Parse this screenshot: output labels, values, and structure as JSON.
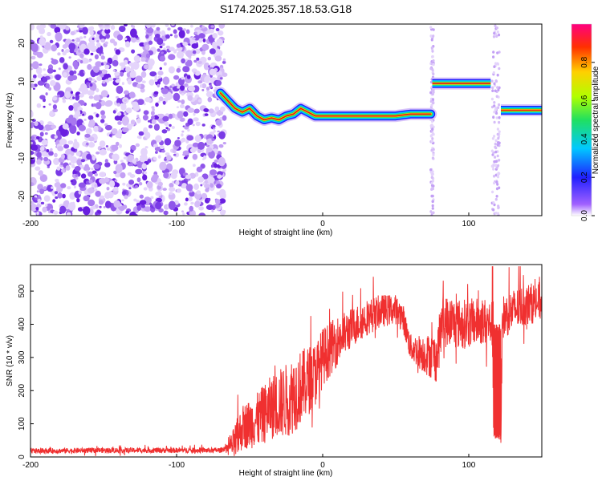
{
  "figure": {
    "title": "S174.2025.357.18.53.G18"
  },
  "chart_data": [
    {
      "type": "heatmap",
      "xlabel": "Height of straight line (km)",
      "ylabel": "Frequency (Hz)",
      "xlim": [
        -200,
        150
      ],
      "ylim": [
        -25,
        25
      ],
      "xticks": [
        "-200",
        "-100",
        "0",
        "100"
      ],
      "yticks": [
        "-20",
        "-10",
        "0",
        "10",
        "20"
      ],
      "xtick_values": [
        -200,
        -100,
        0,
        100
      ],
      "ytick_values": [
        -20,
        -10,
        0,
        10,
        20
      ],
      "noise_region_x": [
        -200,
        -67
      ],
      "signal_track": [
        {
          "x": -70,
          "f": 7
        },
        {
          "x": -65,
          "f": 5
        },
        {
          "x": -60,
          "f": 3
        },
        {
          "x": -55,
          "f": 2
        },
        {
          "x": -50,
          "f": 3
        },
        {
          "x": -45,
          "f": 1
        },
        {
          "x": -40,
          "f": 0
        },
        {
          "x": -35,
          "f": 0.5
        },
        {
          "x": -30,
          "f": 0
        },
        {
          "x": -25,
          "f": 1
        },
        {
          "x": -20,
          "f": 1.5
        },
        {
          "x": -15,
          "f": 3
        },
        {
          "x": -10,
          "f": 2
        },
        {
          "x": -5,
          "f": 1
        },
        {
          "x": 0,
          "f": 1
        },
        {
          "x": 10,
          "f": 1
        },
        {
          "x": 20,
          "f": 1
        },
        {
          "x": 30,
          "f": 1
        },
        {
          "x": 40,
          "f": 1
        },
        {
          "x": 50,
          "f": 1
        },
        {
          "x": 60,
          "f": 1.5
        },
        {
          "x": 70,
          "f": 1.5
        },
        {
          "x": 74,
          "f": 1.5
        }
      ],
      "signal_segments": [
        {
          "x0": 75,
          "x1": 115,
          "f": 9.5
        },
        {
          "x0": 122,
          "x1": 150,
          "f": 2.5
        }
      ],
      "gaps": [
        {
          "x0": 74,
          "x1": 76
        },
        {
          "x0": 116,
          "x1": 121
        }
      ],
      "colorbar": {
        "label": "Normalized spectral amplitude",
        "range": [
          0,
          1
        ],
        "ticks": [
          "0.0",
          "0.2",
          "0.4",
          "0.6",
          "0.8"
        ],
        "tick_values": [
          0,
          0.2,
          0.4,
          0.6,
          0.8
        ]
      }
    },
    {
      "type": "line",
      "xlabel": "Height of straight line (km)",
      "ylabel": "SNR (10 * v/v)",
      "xlim": [
        -200,
        150
      ],
      "ylim": [
        0,
        580
      ],
      "xticks": [
        "-200",
        "-100",
        "0",
        "100"
      ],
      "yticks": [
        "0",
        "100",
        "200",
        "300",
        "400",
        "500"
      ],
      "xtick_values": [
        -200,
        -100,
        0,
        100
      ],
      "ytick_values": [
        0,
        100,
        200,
        300,
        400,
        500
      ],
      "color": "#f03030",
      "trend": [
        {
          "x": -200,
          "y": 18
        },
        {
          "x": -150,
          "y": 20
        },
        {
          "x": -100,
          "y": 20
        },
        {
          "x": -70,
          "y": 20
        },
        {
          "x": -60,
          "y": 40
        },
        {
          "x": -55,
          "y": 90
        },
        {
          "x": -45,
          "y": 110
        },
        {
          "x": -35,
          "y": 150
        },
        {
          "x": -25,
          "y": 170
        },
        {
          "x": -15,
          "y": 210
        },
        {
          "x": -5,
          "y": 250
        },
        {
          "x": 0,
          "y": 300
        },
        {
          "x": 10,
          "y": 350
        },
        {
          "x": 20,
          "y": 390
        },
        {
          "x": 30,
          "y": 420
        },
        {
          "x": 40,
          "y": 440
        },
        {
          "x": 50,
          "y": 445
        },
        {
          "x": 55,
          "y": 420
        },
        {
          "x": 60,
          "y": 330
        },
        {
          "x": 70,
          "y": 310
        },
        {
          "x": 78,
          "y": 300
        },
        {
          "x": 82,
          "y": 410
        },
        {
          "x": 95,
          "y": 400
        },
        {
          "x": 110,
          "y": 410
        },
        {
          "x": 116,
          "y": 400
        },
        {
          "x": 117,
          "y": 60
        },
        {
          "x": 122,
          "y": 60
        },
        {
          "x": 123,
          "y": 420
        },
        {
          "x": 130,
          "y": 440
        },
        {
          "x": 140,
          "y": 460
        },
        {
          "x": 150,
          "y": 470
        }
      ],
      "noise_amplitude": [
        {
          "x": -200,
          "a": 8
        },
        {
          "x": -65,
          "a": 8
        },
        {
          "x": -60,
          "a": 60
        },
        {
          "x": -20,
          "a": 120
        },
        {
          "x": 0,
          "a": 90
        },
        {
          "x": 20,
          "a": 60
        },
        {
          "x": 60,
          "a": 40
        },
        {
          "x": 80,
          "a": 80
        },
        {
          "x": 150,
          "a": 60
        }
      ]
    }
  ]
}
